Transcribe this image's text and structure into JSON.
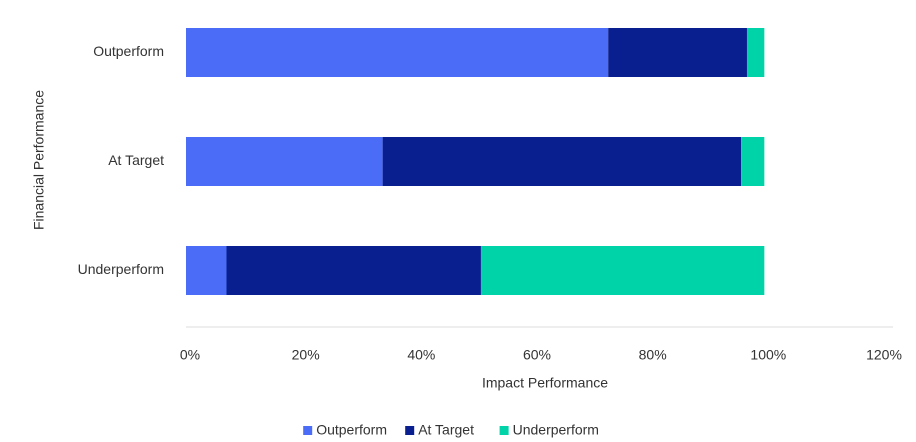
{
  "chart_data": {
    "type": "stacked-bar-horizontal",
    "x_label": "Impact Performance",
    "y_label": "Financial Performance",
    "categories": [
      "Outperform",
      "At Target",
      "Underperform"
    ],
    "series": [
      {
        "name": "Outperform",
        "color": "#4a6cf7",
        "values": [
          73,
          34,
          7
        ]
      },
      {
        "name": "At Target",
        "color": "#0a1f8f",
        "values": [
          24,
          62,
          44
        ]
      },
      {
        "name": "Underperform",
        "color": "#00d3a7",
        "values": [
          3,
          4,
          49
        ]
      }
    ],
    "xlim": [
      0,
      120
    ],
    "xticks": [
      {
        "value": 0,
        "label": "0%"
      },
      {
        "value": 20,
        "label": "20%"
      },
      {
        "value": 40,
        "label": "40%"
      },
      {
        "value": 60,
        "label": "60%"
      },
      {
        "value": 80,
        "label": "80%"
      },
      {
        "value": 100,
        "label": "100%"
      },
      {
        "value": 120,
        "label": "120%"
      }
    ],
    "legend": "bottom"
  }
}
